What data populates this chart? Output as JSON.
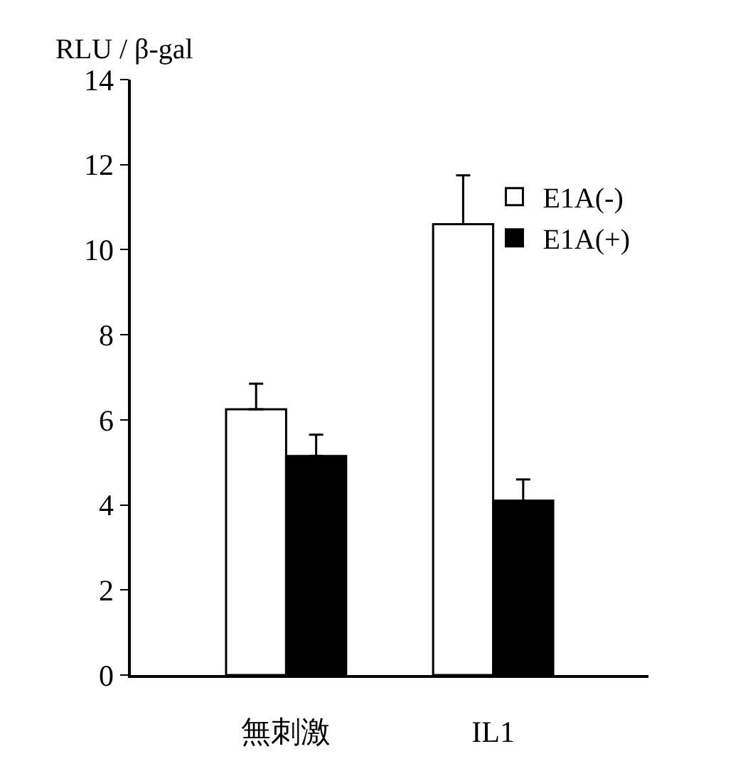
{
  "chart_data": {
    "type": "bar",
    "ylabel": "RLU / β-gal",
    "categories": [
      "無刺激",
      "IL1"
    ],
    "series": [
      {
        "name": "E1A(-)",
        "color": "#ffffff",
        "values": [
          6.25,
          10.6
        ],
        "errors": [
          [
            6.25,
            6.85
          ],
          [
            10.6,
            11.75
          ]
        ]
      },
      {
        "name": "E1A(+)",
        "color": "#000000",
        "values": [
          5.15,
          4.1
        ],
        "errors": [
          [
            5.15,
            5.65
          ],
          [
            4.1,
            4.6
          ]
        ]
      }
    ],
    "ylim": [
      0,
      14
    ],
    "yticks": [
      0,
      2,
      4,
      6,
      8,
      10,
      12,
      14
    ],
    "legend": "top right"
  }
}
